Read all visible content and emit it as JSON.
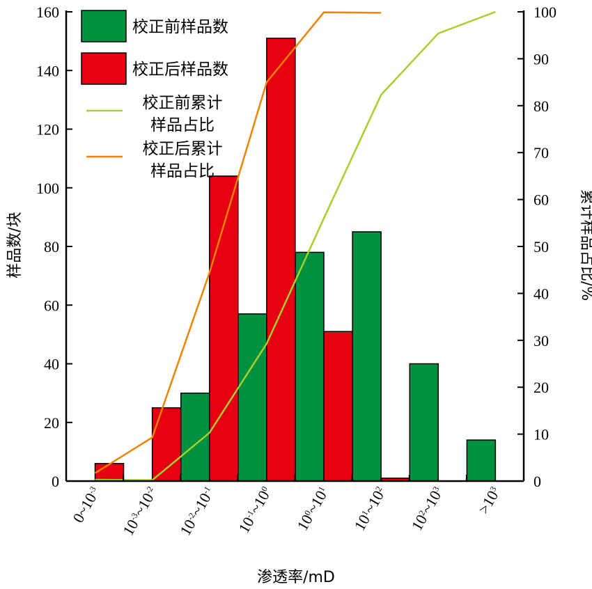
{
  "chart_data": {
    "type": "bar",
    "categories": [
      {
        "base1": "0~10",
        "exp1": "-3"
      },
      {
        "base1": "10",
        "exp1": "-3",
        "base2": "~10",
        "exp2": "-2"
      },
      {
        "base1": "10",
        "exp1": "-2",
        "base2": "~10",
        "exp2": "-1"
      },
      {
        "base1": "10",
        "exp1": "-1",
        "base2": "~10",
        "exp2": "0"
      },
      {
        "base1": "10",
        "exp1": "0",
        "base2": "~10",
        "exp2": "1"
      },
      {
        "base1": "10",
        "exp1": "1",
        "base2": "~10",
        "exp2": "2"
      },
      {
        "base1": "10",
        "exp1": "2",
        "base2": "~10",
        "exp2": "3"
      },
      {
        "base1": ">10",
        "exp1": "3"
      }
    ],
    "xlabel": "渗透率/mD",
    "ylabel": "样品数/块",
    "y2label": "累计样品占比/%",
    "ylim": [
      0,
      160
    ],
    "y2lim": [
      0,
      100
    ],
    "yticks": [
      0,
      20,
      40,
      60,
      80,
      100,
      120,
      140,
      160
    ],
    "y2ticks": [
      0,
      10,
      20,
      30,
      40,
      50,
      60,
      70,
      80,
      90,
      100
    ],
    "bar_series": [
      {
        "name": "校正前样品数",
        "color": "#009140",
        "values": [
          0,
          0,
          30,
          57,
          78,
          85,
          40,
          14
        ]
      },
      {
        "name": "校正后样品数",
        "color": "#e60012",
        "values": [
          6,
          25,
          104,
          151,
          51,
          1,
          0,
          0
        ]
      }
    ],
    "line_series": [
      {
        "name": "校正前累计样品占比",
        "name_lines": [
          "校正前累计",
          "样品占比"
        ],
        "color": "#a6d02a",
        "x_index": [
          0,
          1,
          2,
          3,
          4,
          5,
          6,
          7
        ],
        "values": [
          0.3,
          0.2,
          10.3,
          29.3,
          56.0,
          82.3,
          95.4,
          100
        ]
      },
      {
        "name": "校正后累计样品占比",
        "name_lines": [
          "校正后累计",
          "样品占比"
        ],
        "color": "#f08300",
        "x_index": [
          0,
          1,
          2,
          3,
          4,
          5
        ],
        "values": [
          1.7,
          9.3,
          44.4,
          85.0,
          99.9,
          99.8
        ]
      }
    ],
    "legend_position": "top-left",
    "grid": false
  }
}
